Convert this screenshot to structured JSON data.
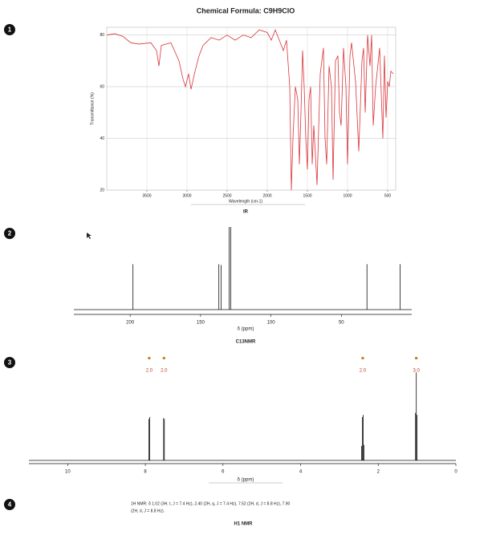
{
  "title": "Chemical Formula: C9H9ClO",
  "markers": [
    "1",
    "2",
    "3",
    "4"
  ],
  "chart_data": [
    {
      "type": "line",
      "caption": "IR",
      "x_label": "Wavelength (cm-1)",
      "y_label": "Transmittance (%)",
      "color": "#d9343a",
      "grid": true,
      "xlim": [
        4000,
        400
      ],
      "ylim": [
        20,
        83
      ],
      "xticks": [
        3500,
        3000,
        2500,
        2000,
        1500,
        1000,
        500
      ],
      "yticks": [
        20,
        40,
        60,
        80
      ],
      "x": [
        4000,
        3900,
        3800,
        3700,
        3600,
        3450,
        3380,
        3350,
        3320,
        3200,
        3100,
        3050,
        3020,
        2980,
        2950,
        2900,
        2850,
        2800,
        2700,
        2600,
        2500,
        2400,
        2300,
        2200,
        2100,
        2000,
        1950,
        1900,
        1850,
        1800,
        1760,
        1720,
        1700,
        1680,
        1650,
        1620,
        1600,
        1580,
        1560,
        1540,
        1520,
        1500,
        1480,
        1460,
        1440,
        1420,
        1380,
        1340,
        1300,
        1280,
        1260,
        1230,
        1200,
        1180,
        1150,
        1120,
        1100,
        1080,
        1050,
        1020,
        1000,
        970,
        950,
        900,
        860,
        820,
        800,
        780,
        750,
        720,
        700,
        680,
        650,
        600,
        560,
        540,
        520,
        500,
        480,
        460,
        430
      ],
      "values": [
        80,
        80.5,
        79.5,
        77,
        76.5,
        77,
        74,
        68,
        76,
        77,
        70,
        63,
        60,
        65,
        59,
        66,
        72,
        76,
        79,
        78,
        80,
        78,
        80,
        79,
        82,
        81,
        78,
        82,
        78,
        74,
        78,
        60,
        20,
        40,
        60,
        55,
        30,
        50,
        74,
        60,
        40,
        28,
        55,
        60,
        30,
        45,
        22,
        65,
        75,
        40,
        30,
        68,
        60,
        24,
        70,
        72,
        50,
        45,
        75,
        60,
        30,
        72,
        77,
        62,
        35,
        70,
        75,
        50,
        80,
        68,
        80,
        45,
        60,
        75,
        40,
        72,
        48,
        62,
        60,
        66,
        65
      ]
    },
    {
      "type": "stick",
      "caption": "C13NMR",
      "x_label": "δ (ppm)",
      "color": "#111111",
      "xlim": [
        240,
        0
      ],
      "xticks": [
        200,
        150,
        100,
        50
      ],
      "x": [
        198.0,
        137.0,
        135.4,
        129.7,
        128.5,
        31.8,
        8.2
      ],
      "values": [
        55,
        55,
        54,
        100,
        100,
        55,
        55
      ]
    },
    {
      "type": "stick",
      "caption": "",
      "x_label": "δ (ppm)",
      "color": "#111111",
      "xlim": [
        11,
        0
      ],
      "xticks": [
        10,
        8,
        6,
        4,
        2,
        0
      ],
      "x": [
        7.91,
        7.89,
        7.53,
        7.51,
        2.43,
        2.41,
        2.39,
        2.37,
        1.04,
        1.02,
        1.0
      ],
      "values": [
        40,
        42,
        41,
        40,
        14,
        42,
        44,
        15,
        46,
        85,
        44
      ],
      "integrals": {
        "x": [
          7.9,
          7.52,
          2.4,
          1.02
        ],
        "values": [
          2,
          2,
          2,
          3
        ],
        "value_labels": [
          "2.0",
          "2.0",
          "2.0",
          "3.0"
        ],
        "color": "#c0392b"
      }
    }
  ],
  "h1_text": [
    "1H NMR: δ 1.02 (3H, t, J = 7.4 Hz), 2.40 (2H, q, J = 7.4 Hz), 7.52 (2H, d, J = 8.8 Hz), 7.90",
    "(2H, d, J = 8.8 Hz)."
  ],
  "h1_caption": "H1 NMR"
}
